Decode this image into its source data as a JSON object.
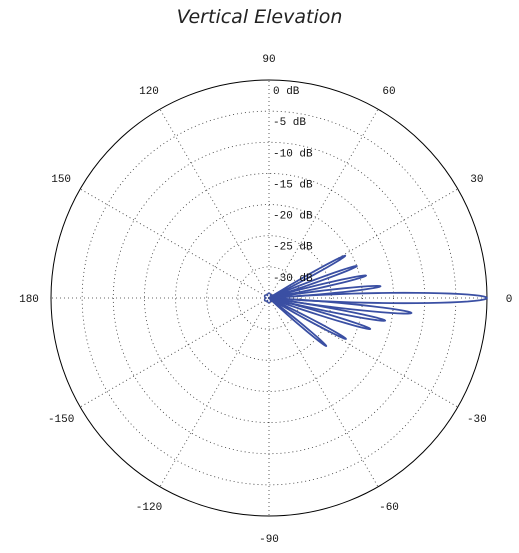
{
  "chart_data": {
    "type": "polar",
    "title": "Vertical Elevation",
    "angle_labels": [
      "0",
      "30",
      "60",
      "90",
      "120",
      "150",
      "180",
      "-150",
      "-120",
      "-90",
      "-60",
      "-30"
    ],
    "angle_values_deg": [
      0,
      30,
      60,
      90,
      120,
      150,
      180,
      -150,
      -120,
      -90,
      -60,
      -30
    ],
    "radial_labels": [
      "0 dB",
      "-5 dB",
      "-10 dB",
      "-15 dB",
      "-20 dB",
      "-25 dB",
      "-30 dB"
    ],
    "radial_values_db": [
      0,
      -5,
      -10,
      -15,
      -20,
      -25,
      -30
    ],
    "rlim_db": [
      -35,
      0
    ],
    "grid": true,
    "series": [
      {
        "color": "#3a4fa3",
        "lobes": [
          {
            "angle_deg": 0,
            "peak_db": 0,
            "halfwidth_deg": 2.6
          },
          {
            "angle_deg": -6,
            "peak_db": -12,
            "halfwidth_deg": 2.0
          },
          {
            "angle_deg": 6,
            "peak_db": -17,
            "halfwidth_deg": 1.8
          },
          {
            "angle_deg": -11,
            "peak_db": -16,
            "halfwidth_deg": 1.8
          },
          {
            "angle_deg": 13,
            "peak_db": -19,
            "halfwidth_deg": 1.8
          },
          {
            "angle_deg": -17,
            "peak_db": -18,
            "halfwidth_deg": 1.8
          },
          {
            "angle_deg": 20,
            "peak_db": -20,
            "halfwidth_deg": 1.8
          },
          {
            "angle_deg": -28,
            "peak_db": -21,
            "halfwidth_deg": 1.8
          },
          {
            "angle_deg": 29,
            "peak_db": -21,
            "halfwidth_deg": 1.8
          },
          {
            "angle_deg": -40,
            "peak_db": -23,
            "halfwidth_deg": 1.8
          }
        ]
      }
    ]
  }
}
